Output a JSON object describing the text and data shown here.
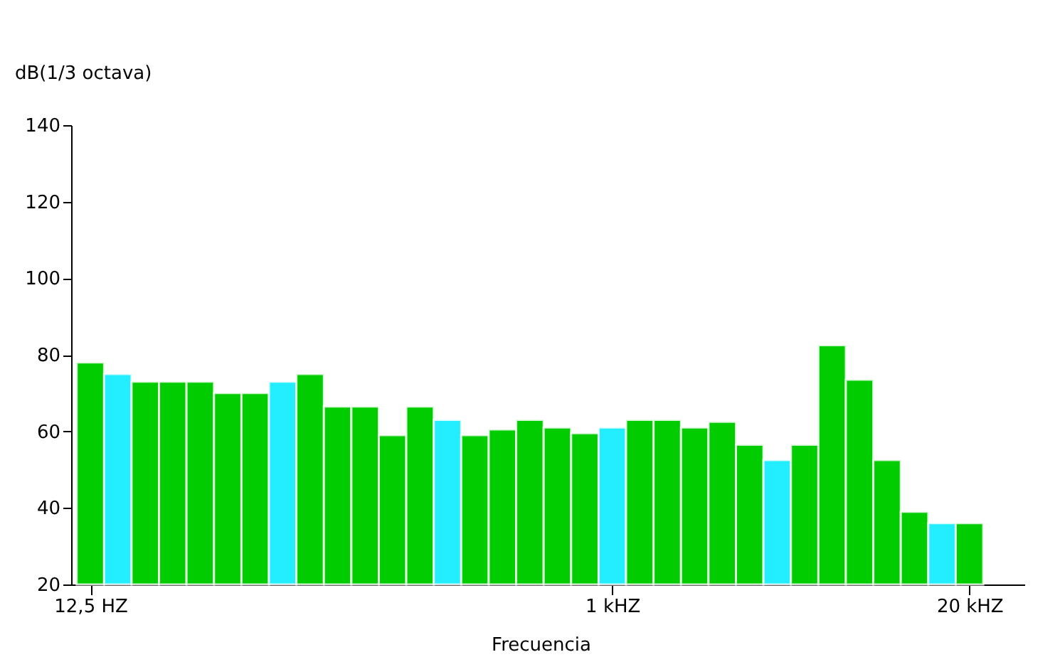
{
  "chart_data": {
    "type": "bar",
    "ylabel": "dB(1/3 octava)",
    "xlabel": "Frecuencia",
    "categories": [
      "12,5 HZ",
      null,
      null,
      null,
      null,
      null,
      null,
      null,
      null,
      null,
      null,
      null,
      null,
      null,
      null,
      null,
      null,
      null,
      null,
      "1 kHZ",
      null,
      null,
      null,
      null,
      null,
      null,
      null,
      null,
      null,
      null,
      null,
      null,
      "20 kHZ"
    ],
    "values": [
      78,
      75,
      73,
      73,
      73,
      70,
      70,
      73,
      75,
      66.5,
      66.5,
      59,
      66.5,
      63,
      59,
      60.5,
      63,
      61,
      59.5,
      61,
      63,
      63,
      61,
      62.5,
      56.5,
      52.5,
      56.5,
      82.5,
      73.5,
      52.5,
      39,
      36,
      36
    ],
    "colors": [
      "#00cc00",
      "#22eeff",
      "#00cc00",
      "#00cc00",
      "#00cc00",
      "#00cc00",
      "#00cc00",
      "#22eeff",
      "#00cc00",
      "#00cc00",
      "#00cc00",
      "#00cc00",
      "#00cc00",
      "#22eeff",
      "#00cc00",
      "#00cc00",
      "#00cc00",
      "#00cc00",
      "#00cc00",
      "#22eeff",
      "#00cc00",
      "#00cc00",
      "#00cc00",
      "#00cc00",
      "#00cc00",
      "#22eeff",
      "#00cc00",
      "#00cc00",
      "#00cc00",
      "#00cc00",
      "#00cc00",
      "#22eeff",
      "#00cc00"
    ],
    "ylim": [
      20,
      140
    ],
    "yticks": [
      20,
      40,
      60,
      80,
      100,
      120,
      140
    ],
    "grid": false
  }
}
